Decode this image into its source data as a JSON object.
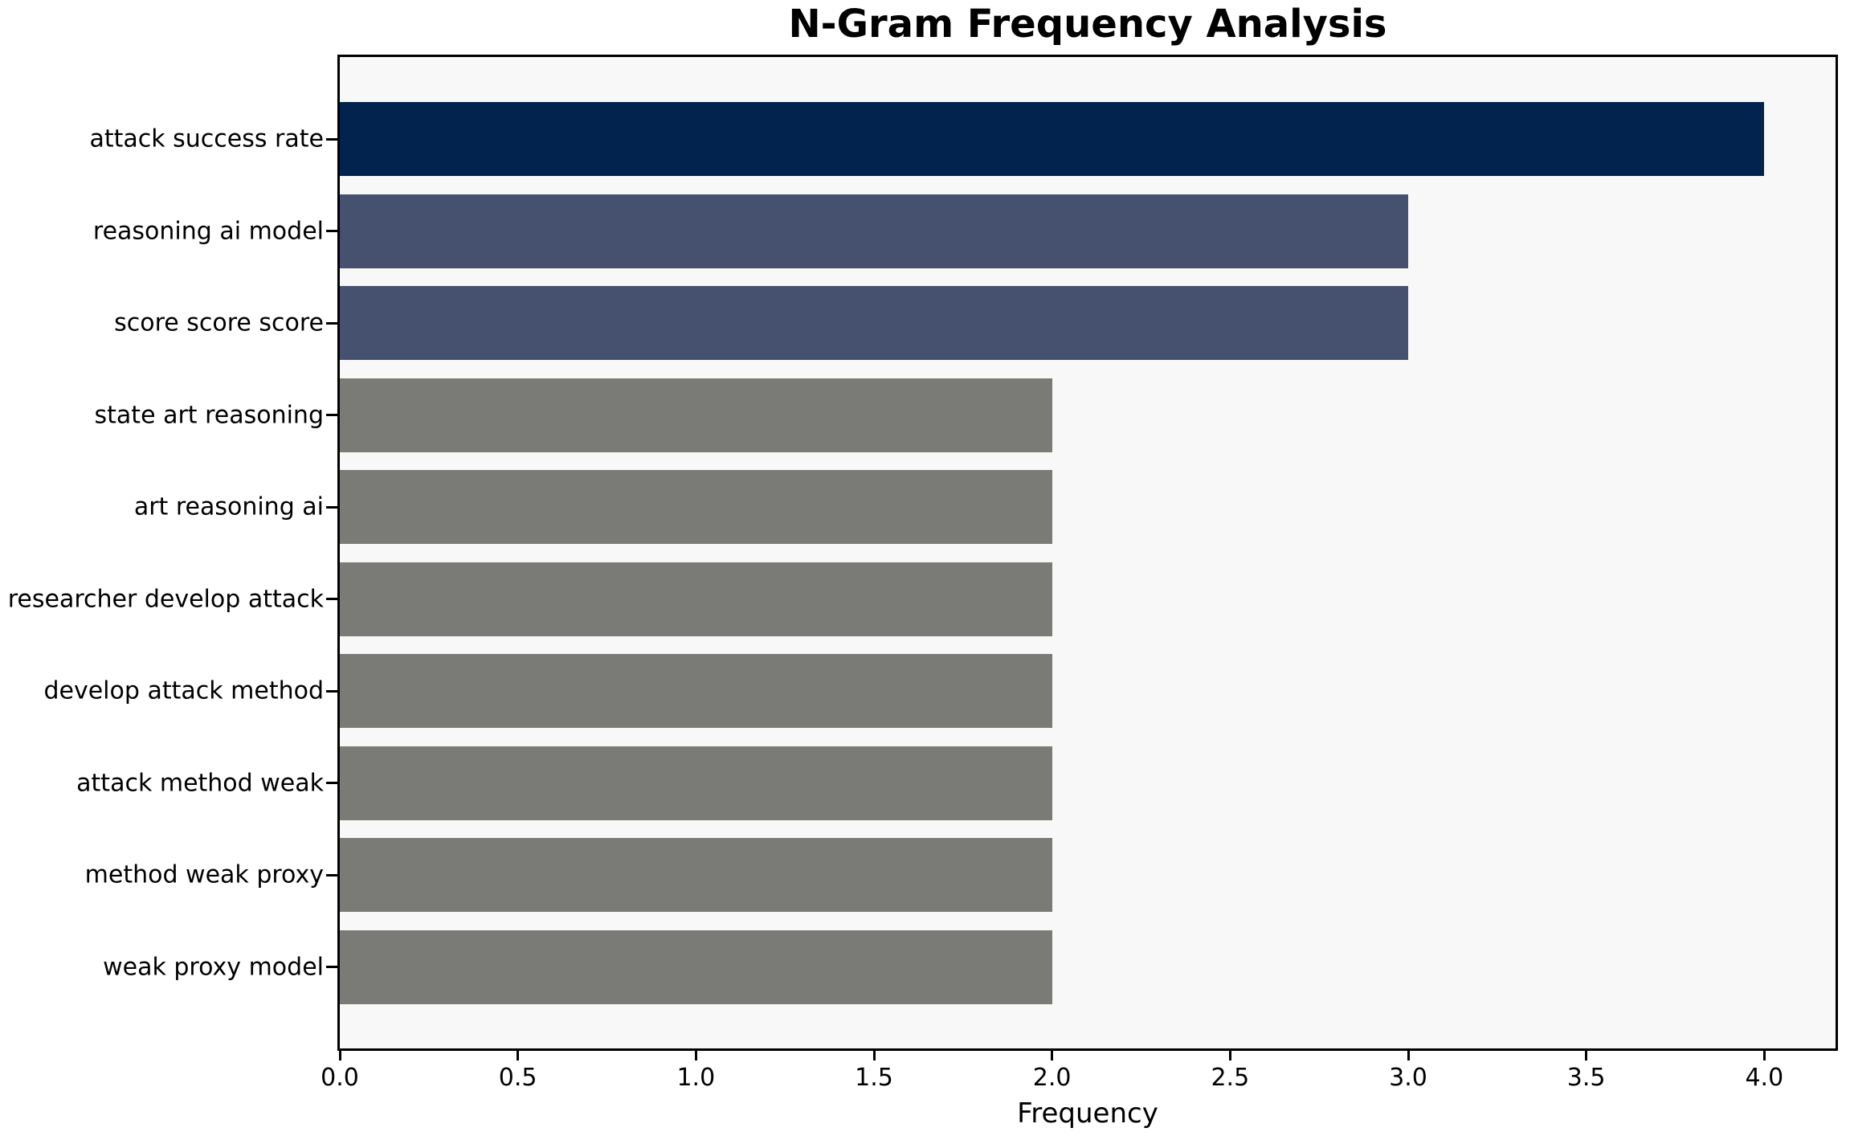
{
  "title": "N-Gram Frequency Analysis",
  "chart_data": {
    "type": "bar",
    "orientation": "horizontal",
    "title": "N-Gram Frequency Analysis",
    "xlabel": "Frequency",
    "ylabel": "",
    "categories": [
      "attack success rate",
      "reasoning ai model",
      "score score score",
      "state art reasoning",
      "art reasoning ai",
      "researcher develop attack",
      "develop attack method",
      "attack method weak",
      "method weak proxy",
      "weak proxy model"
    ],
    "values": [
      4,
      3,
      3,
      2,
      2,
      2,
      2,
      2,
      2,
      2
    ],
    "bar_colors": [
      "#01234e",
      "#45516e",
      "#45516e",
      "#7a7a76",
      "#7a7a76",
      "#7a7a76",
      "#7a7a76",
      "#7a7a76",
      "#7a7a76",
      "#7a7a76"
    ],
    "xlim": [
      0,
      4.2
    ],
    "x_tick_values": [
      0,
      0.5,
      1,
      1.5,
      2,
      2.5,
      3,
      3.5,
      4
    ],
    "x_tick_labels": [
      "0.0",
      "0.5",
      "1.0",
      "1.5",
      "2.0",
      "2.5",
      "3.0",
      "3.5",
      "4.0"
    ],
    "grid": false,
    "legend_position": "none",
    "plot_background": "#f8f8f8",
    "figure_background": "#ffffff",
    "spine_color": "#000000",
    "text_color": "#000000"
  }
}
